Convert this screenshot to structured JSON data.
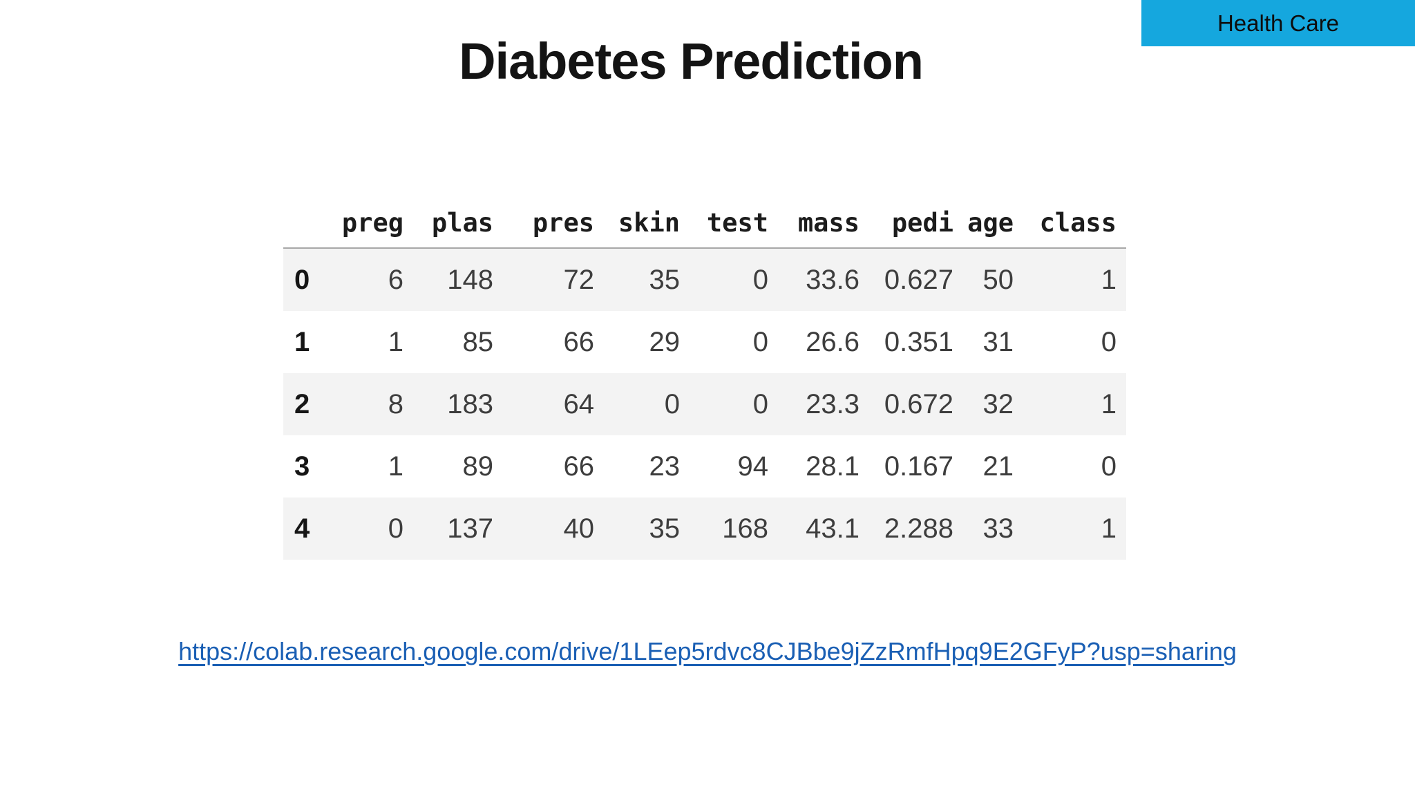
{
  "badge": {
    "label": "Health Care",
    "bg_color": "#15a7de"
  },
  "title": "Diabetes Prediction",
  "table": {
    "columns": [
      "preg",
      "plas",
      "pres",
      "skin",
      "test",
      "mass",
      "pedi",
      "age",
      "class"
    ],
    "rows": [
      {
        "index": "0",
        "values": [
          "6",
          "148",
          "72",
          "35",
          "0",
          "33.6",
          "0.627",
          "50",
          "1"
        ]
      },
      {
        "index": "1",
        "values": [
          "1",
          "85",
          "66",
          "29",
          "0",
          "26.6",
          "0.351",
          "31",
          "0"
        ]
      },
      {
        "index": "2",
        "values": [
          "8",
          "183",
          "64",
          "0",
          "0",
          "23.3",
          "0.672",
          "32",
          "1"
        ]
      },
      {
        "index": "3",
        "values": [
          "1",
          "89",
          "66",
          "23",
          "94",
          "28.1",
          "0.167",
          "21",
          "0"
        ]
      },
      {
        "index": "4",
        "values": [
          "0",
          "137",
          "40",
          "35",
          "168",
          "43.1",
          "2.288",
          "33",
          "1"
        ]
      }
    ]
  },
  "link": {
    "text": "https://colab.research.google.com/drive/1LEep5rdvc8CJBbe9jZzRmfHpq9E2GFyP?usp=sharing",
    "url": "https://colab.research.google.com/drive/1LEep5rdvc8CJBbe9jZzRmfHpq9E2GFyP?usp=sharing",
    "color": "#1a5fb4"
  }
}
